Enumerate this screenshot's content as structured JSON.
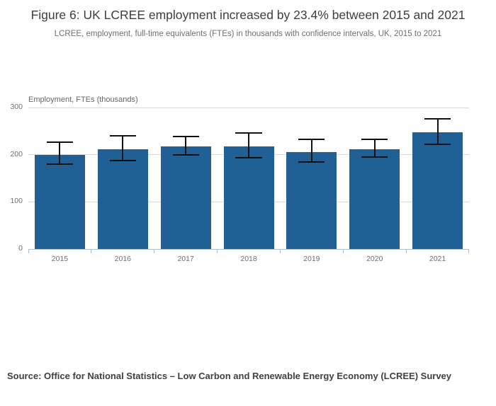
{
  "page": {
    "title": "Figure 6: UK LCREE employment increased by 23.4% between 2015 and 2021",
    "subtitle": "LCREE, employment, full-time equivalents (FTEs) in thousands with confidence intervals, UK, 2015 to 2021",
    "source": "Source: Office for National Statistics – Low Carbon and Renewable Energy Economy (LCREE) Survey"
  },
  "chart_data": {
    "type": "bar",
    "title": "Figure 6: UK LCREE employment increased by 23.4% between 2015 and 2021",
    "subtitle": "LCREE, employment, full-time equivalents (FTEs) in thousands with confidence intervals, UK, 2015 to 2021",
    "axis_title": "Employment, FTEs (thousands)",
    "xlabel": "",
    "ylabel": "Employment, FTEs (thousands)",
    "categories": [
      "2015",
      "2016",
      "2017",
      "2018",
      "2019",
      "2020",
      "2021"
    ],
    "series": [
      {
        "name": "Employment, FTEs (thousands)",
        "values": [
          200,
          211,
          217,
          218,
          206,
          212,
          248
        ],
        "ci_low": [
          180,
          187,
          200,
          193,
          185,
          195,
          222
        ],
        "ci_high": [
          226,
          240,
          238,
          246,
          232,
          233,
          276
        ]
      }
    ],
    "ylim": [
      0,
      300
    ],
    "y_ticks": [
      0,
      100,
      200,
      300
    ],
    "grid": true,
    "legend_position": "none",
    "colors": {
      "bar": "#206095",
      "error_bar": "#111111",
      "axis_line": "#a8bfd3",
      "gridline": "#dadada"
    }
  }
}
